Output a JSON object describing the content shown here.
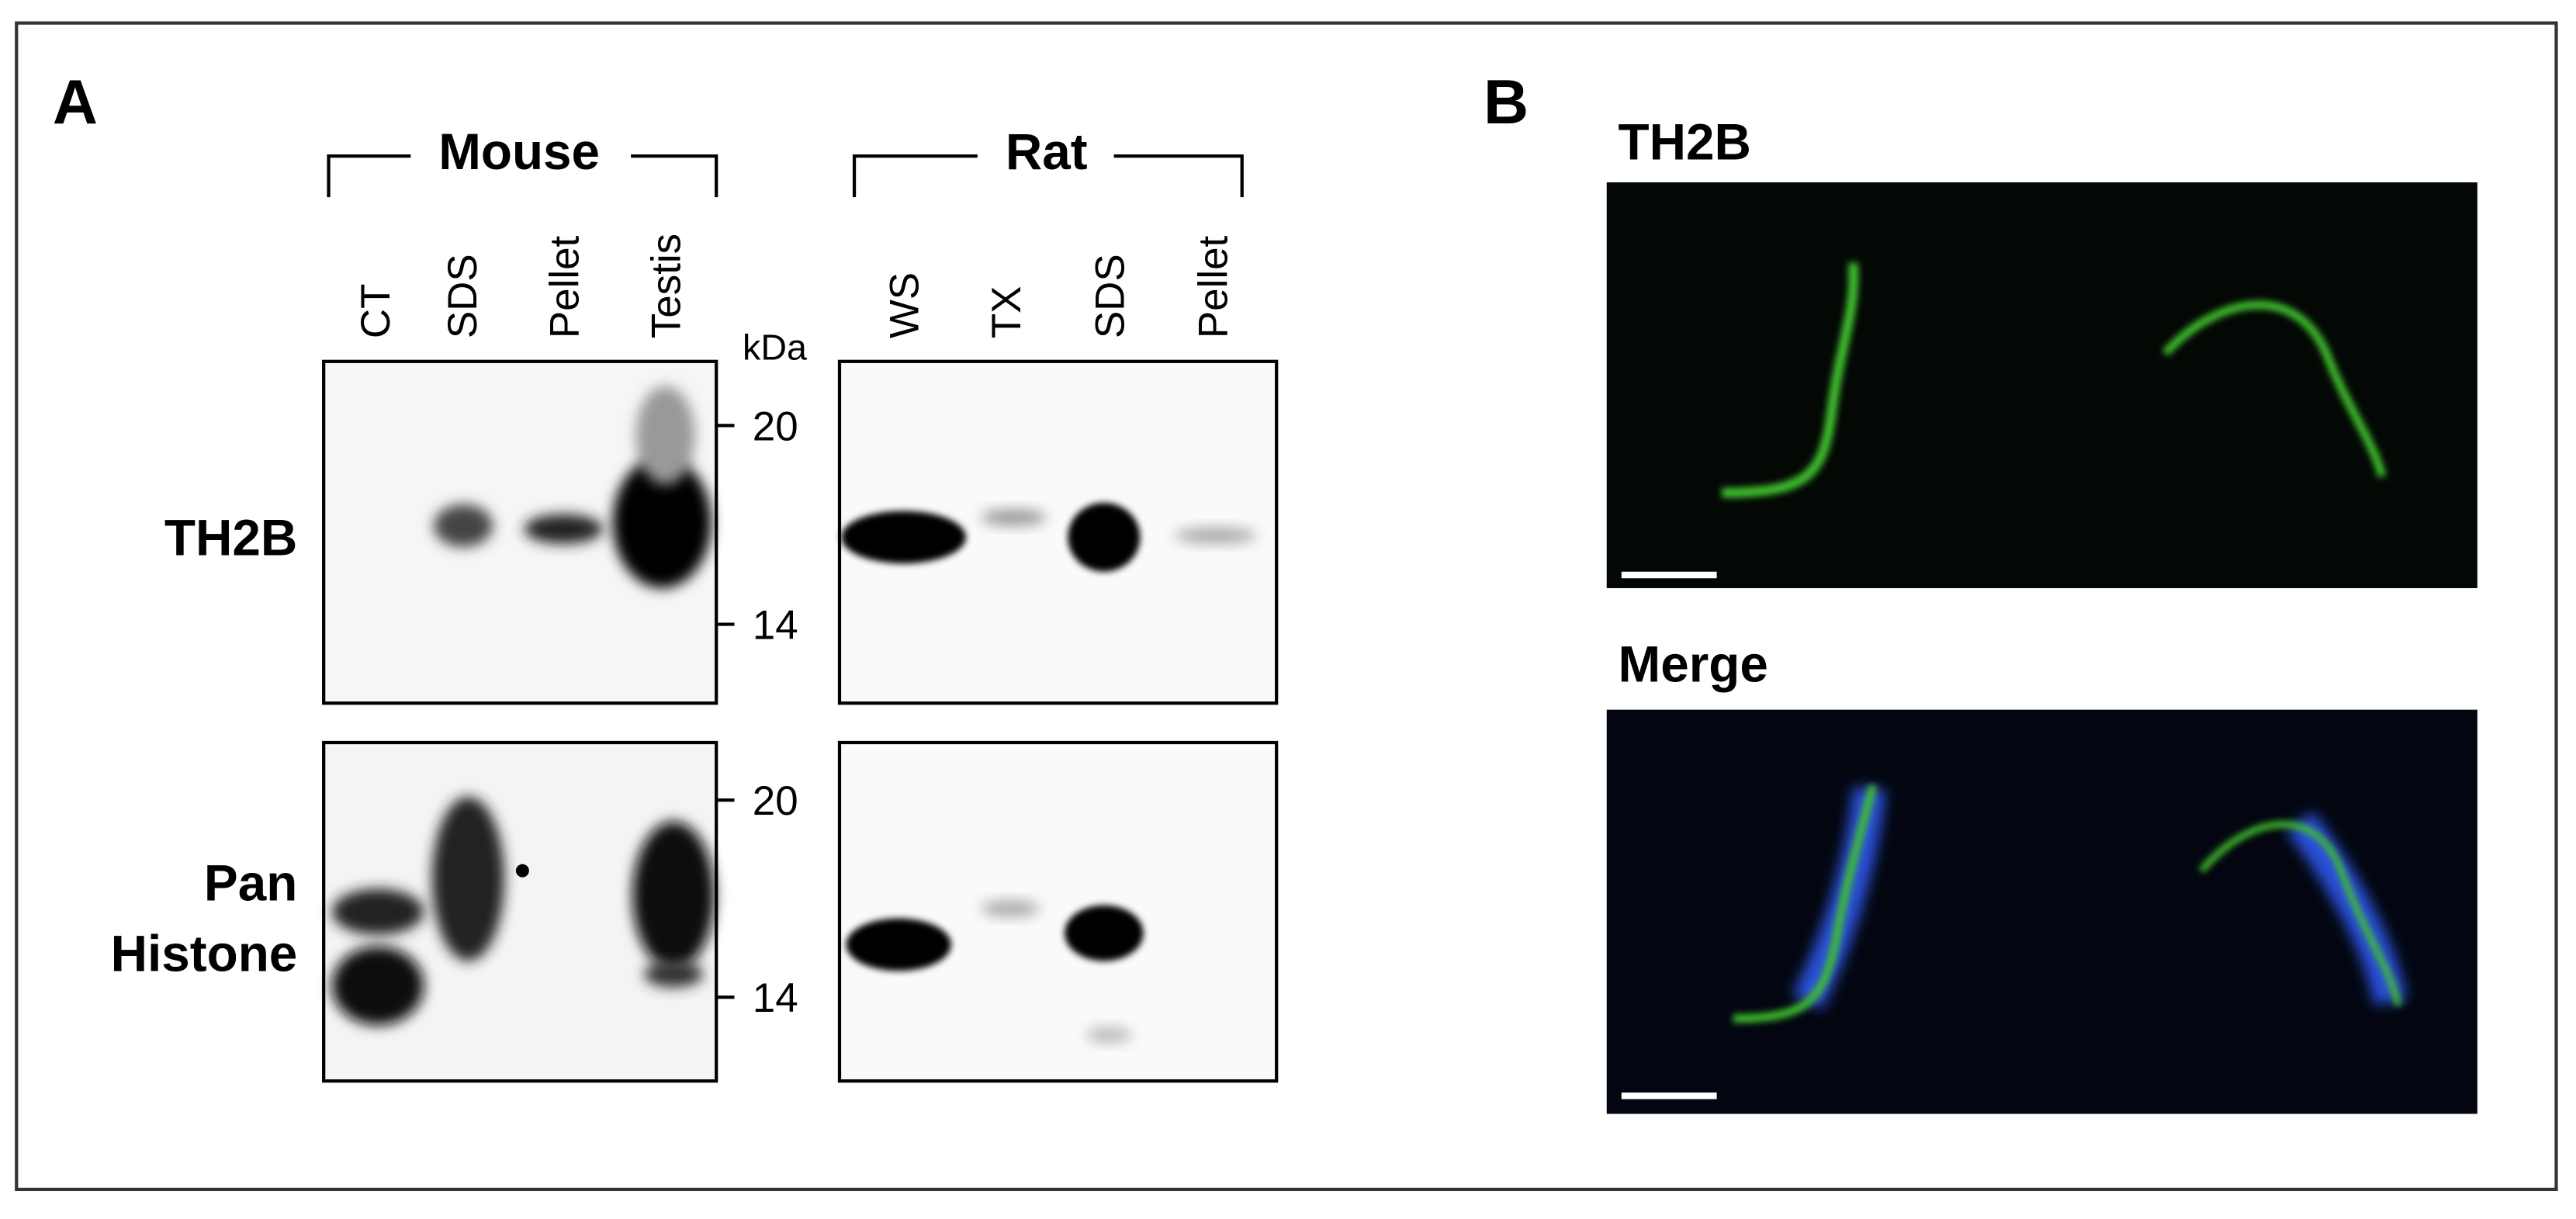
{
  "panel_a": {
    "label": "A",
    "groups": [
      {
        "name": "Mouse",
        "lanes": [
          "CT",
          "SDS",
          "Pellet",
          "Testis"
        ]
      },
      {
        "name": "Rat",
        "lanes": [
          "WS",
          "TX",
          "SDS",
          "Pellet"
        ]
      }
    ],
    "marker_unit": "kDa",
    "rows": [
      {
        "label_lines": [
          "TH2B"
        ],
        "markers": [
          "20",
          "14"
        ]
      },
      {
        "label_lines": [
          "Pan",
          "Histone"
        ],
        "markers": [
          "20",
          "14"
        ]
      }
    ]
  },
  "panel_b": {
    "label": "B",
    "images": [
      {
        "title": "TH2B"
      },
      {
        "title": "Merge"
      }
    ]
  }
}
